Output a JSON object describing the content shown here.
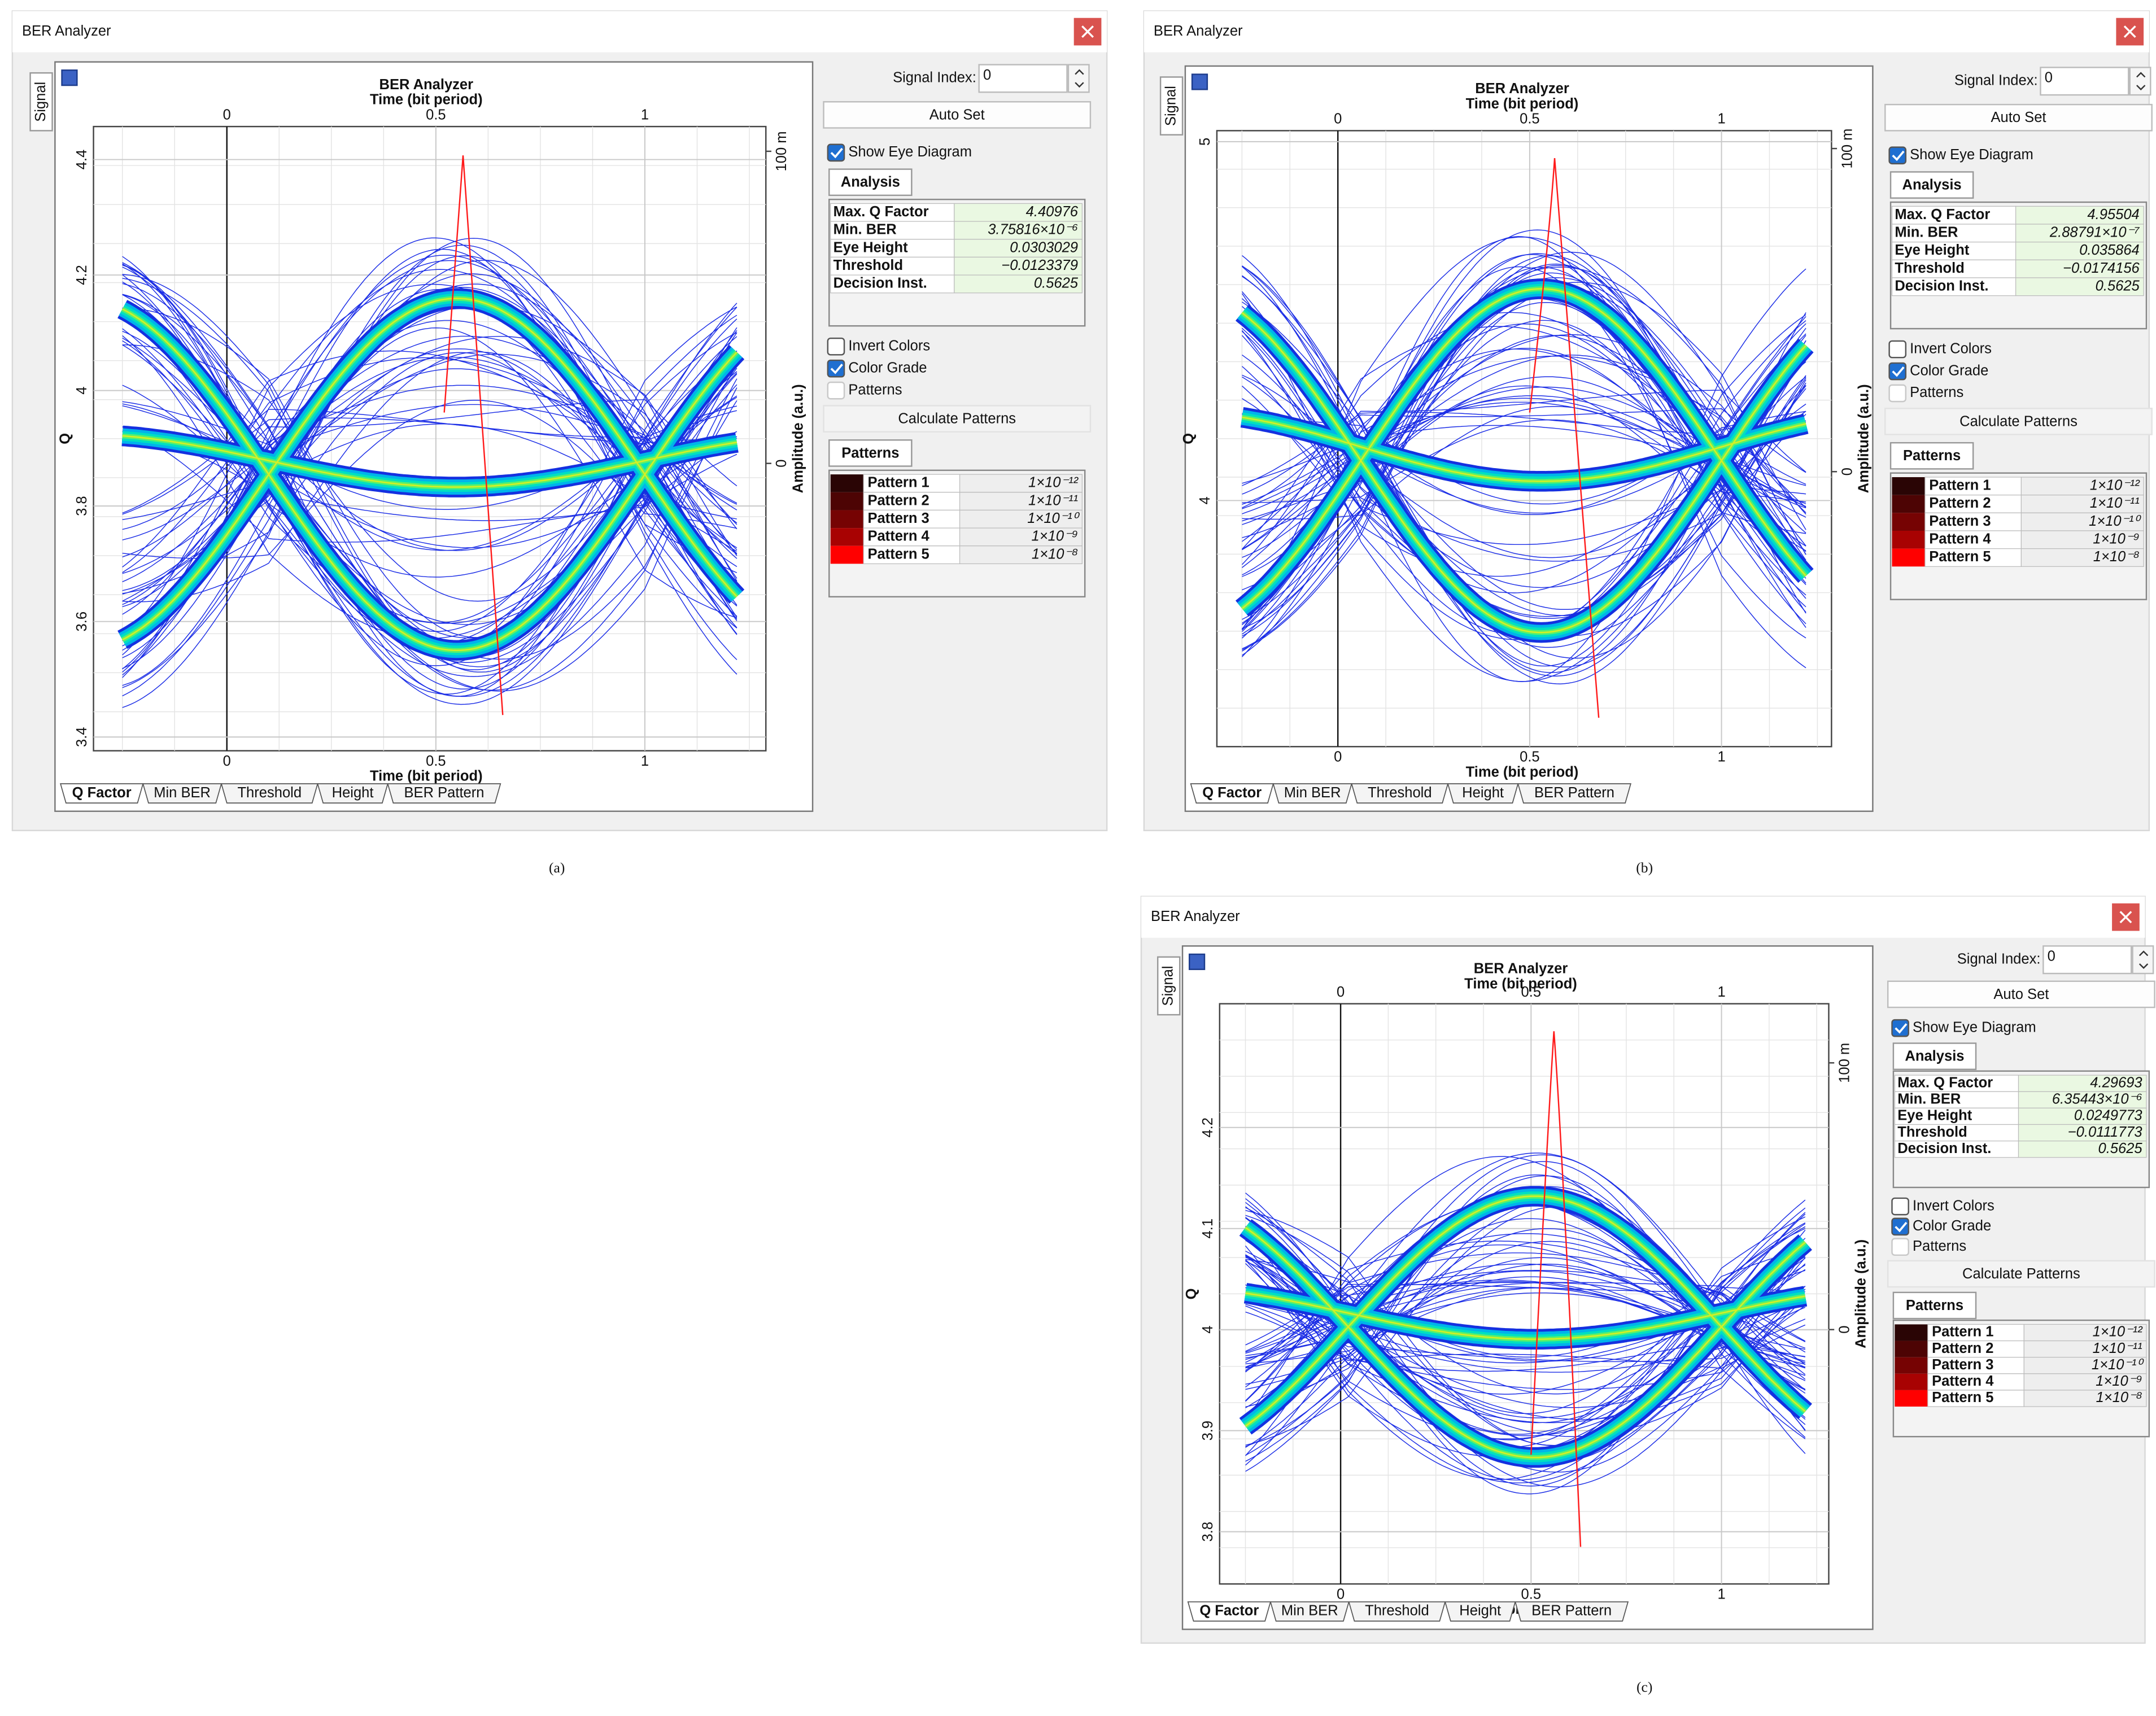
{
  "panels": [
    {
      "caption": "(a)",
      "window_title": "BER Analyzer",
      "signal_tab": "Signal",
      "graph": {
        "title": "BER Analyzer",
        "x_label_top": "Time (bit period)",
        "x_label_bottom": "Time (bit period)",
        "x_ticks": [
          0,
          0.5,
          1
        ],
        "y_label": "Q",
        "y_ticks": [
          4.4,
          4.2,
          4,
          3.8,
          3.6,
          3.4
        ],
        "y2_label": "Amplitude (a.u.)",
        "y2_ticks": [
          {
            "value": 0.1,
            "label": "100 m"
          },
          0
        ]
      },
      "controls": {
        "signal_index_label": "Signal Index:",
        "signal_index": "0",
        "auto_set": "Auto Set",
        "show_eye_diagram": {
          "label": "Show Eye Diagram",
          "checked": true
        },
        "invert_colors": {
          "label": "Invert Colors",
          "checked": false
        },
        "color_grade": {
          "label": "Color Grade",
          "checked": true
        },
        "patterns": {
          "label": "Patterns",
          "checked": false,
          "enabled": false
        },
        "calculate_patterns": {
          "label": "Calculate Patterns",
          "enabled": false
        }
      },
      "analysis": {
        "tab": "Analysis",
        "rows": [
          [
            "Max. Q Factor",
            "4.40976"
          ],
          [
            "Min. BER",
            "3.75816×10⁻⁶"
          ],
          [
            "Eye Height",
            "0.0303029"
          ],
          [
            "Threshold",
            "−0.0123379"
          ],
          [
            "Decision Inst.",
            "0.5625"
          ]
        ]
      },
      "patterns": {
        "tab": "Patterns",
        "rows": [
          {
            "name": "Pattern 1",
            "value": "1×10⁻¹²",
            "color": "#2a0505"
          },
          {
            "name": "Pattern 2",
            "value": "1×10⁻¹¹",
            "color": "#4d0404"
          },
          {
            "name": "Pattern 3",
            "value": "1×10⁻¹⁰",
            "color": "#760303"
          },
          {
            "name": "Pattern 4",
            "value": "1×10⁻⁹",
            "color": "#a80202"
          },
          {
            "name": "Pattern 5",
            "value": "1×10⁻⁸",
            "color": "#ff0000"
          }
        ]
      },
      "bottom_tabs": [
        "Q Factor",
        "Min BER",
        "Threshold",
        "Height",
        "BER Pattern"
      ]
    },
    {
      "caption": "(b)",
      "window_title": "BER Analyzer",
      "signal_tab": "Signal",
      "graph": {
        "title": "BER Analyzer",
        "x_label_top": "Time (bit period)",
        "x_label_bottom": "Time (bit period)",
        "x_ticks": [
          0,
          0.5,
          1
        ],
        "y_label": "Q",
        "y_ticks": [
          5,
          4
        ],
        "y2_label": "Amplitude (a.u.)",
        "y2_ticks": [
          {
            "value": 0.1,
            "label": "100 m"
          },
          0
        ]
      },
      "controls": {
        "signal_index_label": "Signal Index:",
        "signal_index": "0",
        "auto_set": "Auto Set",
        "show_eye_diagram": {
          "label": "Show Eye Diagram",
          "checked": true
        },
        "invert_colors": {
          "label": "Invert Colors",
          "checked": false
        },
        "color_grade": {
          "label": "Color Grade",
          "checked": true
        },
        "patterns": {
          "label": "Patterns",
          "checked": false,
          "enabled": false
        },
        "calculate_patterns": {
          "label": "Calculate Patterns",
          "enabled": false
        }
      },
      "analysis": {
        "tab": "Analysis",
        "rows": [
          [
            "Max. Q Factor",
            "4.95504"
          ],
          [
            "Min. BER",
            "2.88791×10⁻⁷"
          ],
          [
            "Eye Height",
            "0.035864"
          ],
          [
            "Threshold",
            "−0.0174156"
          ],
          [
            "Decision Inst.",
            "0.5625"
          ]
        ]
      },
      "patterns": {
        "tab": "Patterns",
        "rows": [
          {
            "name": "Pattern 1",
            "value": "1×10⁻¹²",
            "color": "#2a0505"
          },
          {
            "name": "Pattern 2",
            "value": "1×10⁻¹¹",
            "color": "#4d0404"
          },
          {
            "name": "Pattern 3",
            "value": "1×10⁻¹⁰",
            "color": "#760303"
          },
          {
            "name": "Pattern 4",
            "value": "1×10⁻⁹",
            "color": "#a80202"
          },
          {
            "name": "Pattern 5",
            "value": "1×10⁻⁸",
            "color": "#ff0000"
          }
        ]
      },
      "bottom_tabs": [
        "Q Factor",
        "Min BER",
        "Threshold",
        "Height",
        "BER Pattern"
      ]
    },
    {
      "caption": "(c)",
      "window_title": "BER Analyzer",
      "signal_tab": "Signal",
      "graph": {
        "title": "BER Analyzer",
        "x_label_top": "Time (bit period)",
        "x_label_bottom": "Time (bit period)",
        "x_ticks": [
          0,
          0.5,
          1
        ],
        "y_label": "Q",
        "y_ticks": [
          4.2,
          4.1,
          4,
          3.9,
          3.8
        ],
        "y2_label": "Amplitude (a.u.)",
        "y2_ticks": [
          {
            "value": 0.1,
            "label": "100 m"
          },
          0
        ]
      },
      "controls": {
        "signal_index_label": "Signal Index:",
        "signal_index": "0",
        "auto_set": "Auto Set",
        "show_eye_diagram": {
          "label": "Show Eye Diagram",
          "checked": true
        },
        "invert_colors": {
          "label": "Invert Colors",
          "checked": false
        },
        "color_grade": {
          "label": "Color Grade",
          "checked": true
        },
        "patterns": {
          "label": "Patterns",
          "checked": false,
          "enabled": false
        },
        "calculate_patterns": {
          "label": "Calculate Patterns",
          "enabled": false
        }
      },
      "analysis": {
        "tab": "Analysis",
        "rows": [
          [
            "Max. Q Factor",
            "4.29693"
          ],
          [
            "Min. BER",
            "6.35443×10⁻⁶"
          ],
          [
            "Eye Height",
            "0.0249773"
          ],
          [
            "Threshold",
            "−0.0111773"
          ],
          [
            "Decision Inst.",
            "0.5625"
          ]
        ]
      },
      "patterns": {
        "tab": "Patterns",
        "rows": [
          {
            "name": "Pattern 1",
            "value": "1×10⁻¹²",
            "color": "#2a0505"
          },
          {
            "name": "Pattern 2",
            "value": "1×10⁻¹¹",
            "color": "#4d0404"
          },
          {
            "name": "Pattern 3",
            "value": "1×10⁻¹⁰",
            "color": "#760303"
          },
          {
            "name": "Pattern 4",
            "value": "1×10⁻⁹",
            "color": "#a80202"
          },
          {
            "name": "Pattern 5",
            "value": "1×10⁻⁸",
            "color": "#ff0000"
          }
        ]
      },
      "bottom_tabs": [
        "Q Factor",
        "Min BER",
        "Threshold",
        "Height",
        "BER Pattern"
      ]
    }
  ]
}
